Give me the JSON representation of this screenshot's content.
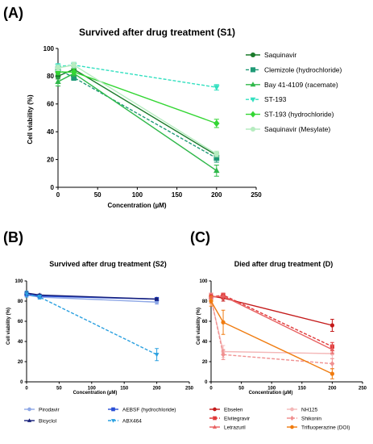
{
  "panels": {
    "A": {
      "letter": "(A)"
    },
    "B": {
      "letter": "(B)"
    },
    "C": {
      "letter": "(C)"
    }
  },
  "chart_data": [
    {
      "id": "A",
      "type": "line",
      "title": "Survived after drug treatment (S1)",
      "xlabel": "Concentration (µM)",
      "ylabel": "Cell viability (%)",
      "xlim": [
        0,
        250
      ],
      "ylim": [
        0,
        100
      ],
      "xticks": [
        0,
        50,
        100,
        150,
        200,
        250
      ],
      "yticks": [
        0,
        20,
        40,
        60,
        80,
        100
      ],
      "legend_position": "right",
      "x": [
        0,
        20,
        200
      ],
      "series": [
        {
          "name": "Saquinavir",
          "color": "#1a7a2a",
          "marker": "circle",
          "dash": "solid",
          "values": [
            80,
            85,
            23
          ],
          "err": [
            2,
            2,
            2
          ]
        },
        {
          "name": "Clemizole (hydrochloride)",
          "color": "#1f9a76",
          "marker": "square",
          "dash": "dashed",
          "values": [
            85,
            79,
            21
          ],
          "err": [
            2,
            2,
            3
          ]
        },
        {
          "name": "Bay 41-4109 (racemate)",
          "color": "#2fb84a",
          "marker": "triangle-up",
          "dash": "solid",
          "values": [
            76,
            82,
            12
          ],
          "err": [
            3,
            2,
            4
          ]
        },
        {
          "name": "ST-193",
          "color": "#33e0c0",
          "marker": "triangle-down",
          "dash": "dashed",
          "values": [
            87,
            88,
            72
          ],
          "err": [
            2,
            2,
            2
          ]
        },
        {
          "name": "ST-193 (hydrochloride)",
          "color": "#33d633",
          "marker": "diamond",
          "dash": "solid",
          "values": [
            83,
            83,
            46
          ],
          "err": [
            2,
            2,
            3
          ]
        },
        {
          "name": "Saquinavir (Mesylate)",
          "color": "#b6ecc0",
          "marker": "circle",
          "dash": "solid",
          "values": [
            86,
            88,
            24
          ],
          "err": [
            2,
            2,
            2
          ]
        }
      ]
    },
    {
      "id": "B",
      "type": "line",
      "title": "Survived after drug treatment (S2)",
      "xlabel": "Concentration (µM)",
      "ylabel": "Cell viability (%)",
      "xlim": [
        0,
        250
      ],
      "ylim": [
        0,
        100
      ],
      "xticks": [
        0,
        50,
        100,
        150,
        200,
        250
      ],
      "yticks": [
        0,
        20,
        40,
        60,
        80,
        100
      ],
      "legend_position": "bottom",
      "x": [
        0,
        20,
        200
      ],
      "series": [
        {
          "name": "Pirodavir",
          "color": "#8fa8e6",
          "marker": "circle",
          "dash": "solid",
          "values": [
            86,
            84,
            79
          ],
          "err": [
            1,
            1,
            2
          ]
        },
        {
          "name": "AEBSF (hydrochloride)",
          "color": "#2a4fd6",
          "marker": "square",
          "dash": "solid",
          "values": [
            87,
            85,
            82
          ],
          "err": [
            1,
            1,
            1
          ]
        },
        {
          "name": "Bicyclol",
          "color": "#17207a",
          "marker": "triangle-up",
          "dash": "solid",
          "values": [
            88,
            86,
            82
          ],
          "err": [
            1,
            1,
            1
          ]
        },
        {
          "name": "ABX464",
          "color": "#2aa0e0",
          "marker": "triangle-down",
          "dash": "dashed",
          "values": [
            87,
            84,
            27
          ],
          "err": [
            3,
            2,
            6
          ]
        }
      ]
    },
    {
      "id": "C",
      "type": "line",
      "title": "Died after drug treatment  (D)",
      "xlabel": "Concentration (µM)",
      "ylabel": "Cell viability (%)",
      "xlim": [
        0,
        250
      ],
      "ylim": [
        0,
        100
      ],
      "xticks": [
        0,
        50,
        100,
        150,
        200,
        250
      ],
      "yticks": [
        0,
        20,
        40,
        60,
        80,
        100
      ],
      "legend_position": "bottom",
      "x": [
        0,
        20,
        200
      ],
      "series": [
        {
          "name": "Ebselen",
          "color": "#c41a1a",
          "marker": "circle",
          "dash": "solid",
          "values": [
            85,
            83,
            56
          ],
          "err": [
            3,
            3,
            6
          ]
        },
        {
          "name": "NH125",
          "color": "#f4b8b8",
          "marker": "circle",
          "dash": "solid",
          "values": [
            82,
            30,
            28
          ],
          "err": [
            5,
            6,
            5
          ]
        },
        {
          "name": "Elvitegravir",
          "color": "#e03838",
          "marker": "square",
          "dash": "dashed",
          "values": [
            84,
            86,
            35
          ],
          "err": [
            3,
            2,
            4
          ]
        },
        {
          "name": "Shikonin",
          "color": "#f09090",
          "marker": "diamond",
          "dash": "dashed",
          "values": [
            83,
            27,
            18
          ],
          "err": [
            5,
            5,
            5
          ]
        },
        {
          "name": "Letrazuril",
          "color": "#e86060",
          "marker": "triangle-up",
          "dash": "solid",
          "values": [
            84,
            85,
            32
          ],
          "err": [
            3,
            3,
            4
          ]
        },
        {
          "name": "Trifluoperazine (DOI)",
          "color": "#f07c10",
          "marker": "circle",
          "dash": "solid",
          "values": [
            80,
            59,
            8
          ],
          "err": [
            5,
            12,
            5
          ]
        }
      ]
    }
  ]
}
